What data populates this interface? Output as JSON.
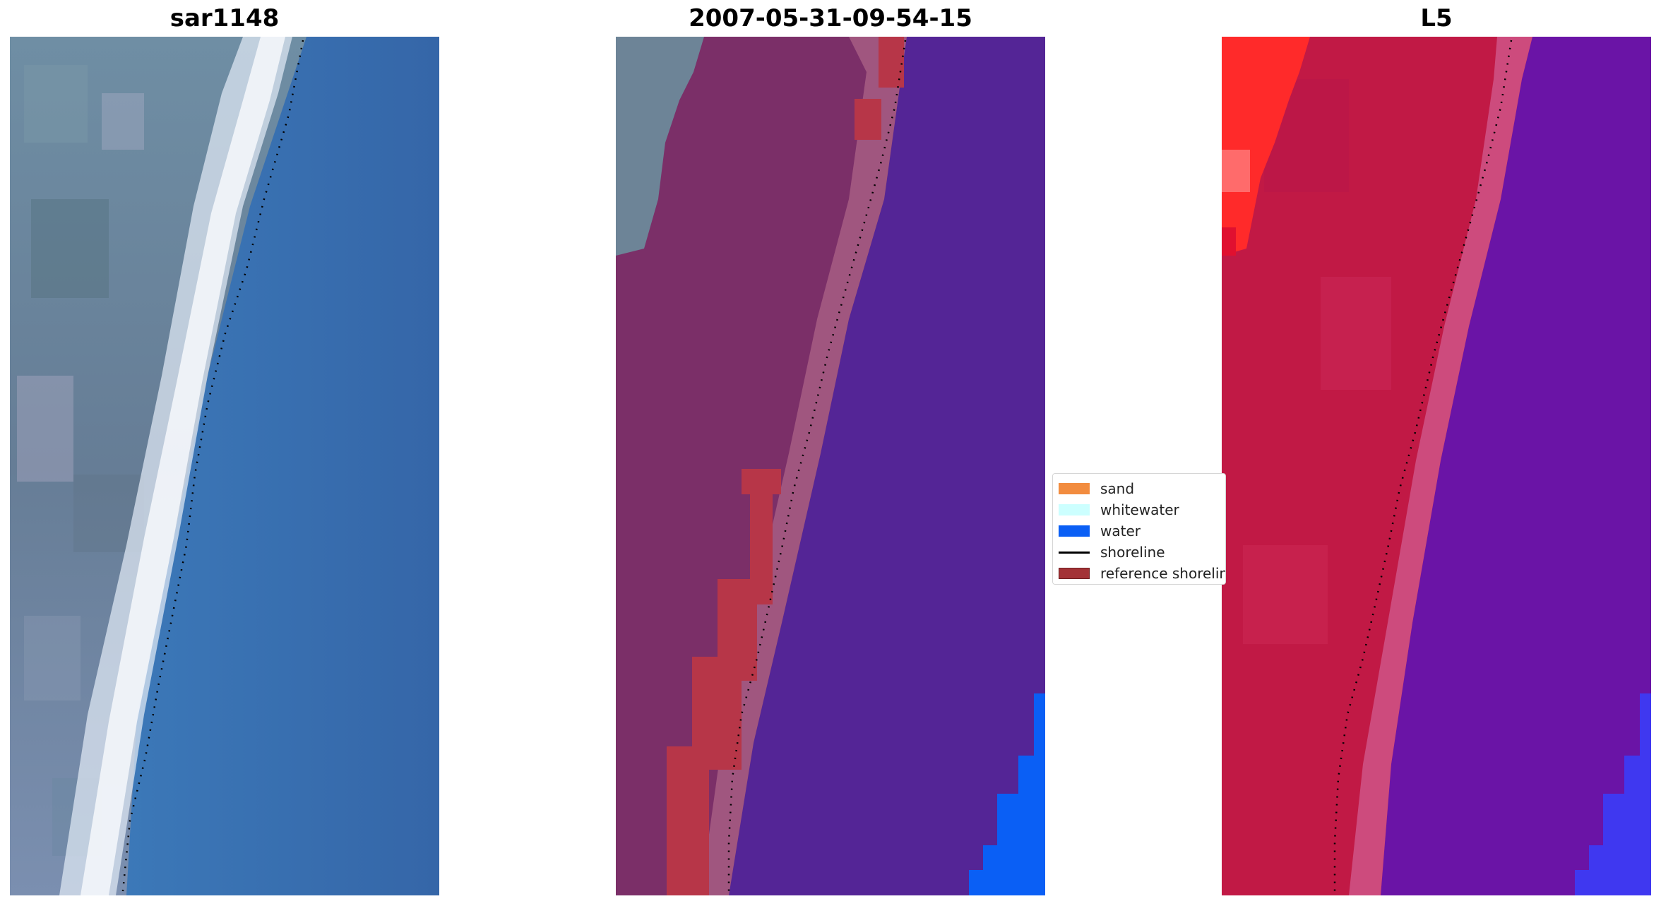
{
  "panels": [
    {
      "title": "sar1148"
    },
    {
      "title": "2007-05-31-09-54-15"
    },
    {
      "title": "L5"
    }
  ],
  "legend": {
    "items": [
      {
        "label": "sand",
        "color": "#f28c3f"
      },
      {
        "label": "whitewater",
        "color": "#ccffff"
      },
      {
        "label": "water",
        "color": "#0a5ff5"
      },
      {
        "label": "shoreline",
        "color": "#000000"
      },
      {
        "label": "reference shoreline",
        "color": "#a33236"
      }
    ]
  },
  "colors": {
    "rgb_water": "#3a78b8",
    "rgb_land": "#6c8298",
    "rgb_surf": "#e6eef6",
    "class_land": "#7b2f68",
    "class_sand_edge": "#a0567f",
    "class_water": "#542596",
    "class_reference": "#b73648",
    "ndwi_land": "#c11945",
    "ndwi_water": "#6a14a6",
    "ndwi_bright_red": "#ff2a2a",
    "water_blue": "#0a5ff5"
  }
}
